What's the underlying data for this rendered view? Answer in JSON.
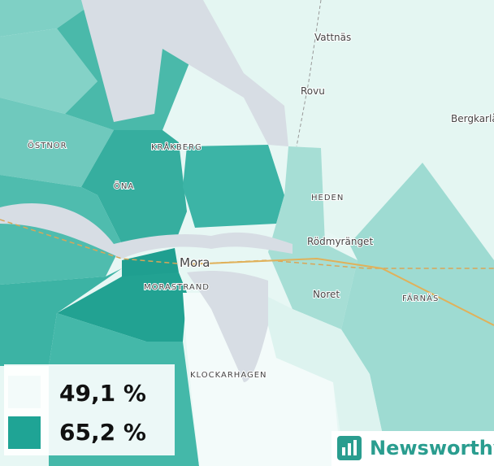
{
  "places": [
    "Vattnäs",
    "Rovu",
    "Bergkarlå",
    "ÖSTNOR",
    "KRÅKBERG",
    "ÖNA",
    "HEDEN",
    "Rödmyränget",
    "Mora",
    "MORASTRAND",
    "Noret",
    "FÄRNÄS",
    "KLOCKARHAGEN"
  ],
  "legend": {
    "items": [
      {
        "label": "49,1 %"
      },
      {
        "label": "65,2 %"
      }
    ]
  },
  "logo": "Newsworthy"
}
